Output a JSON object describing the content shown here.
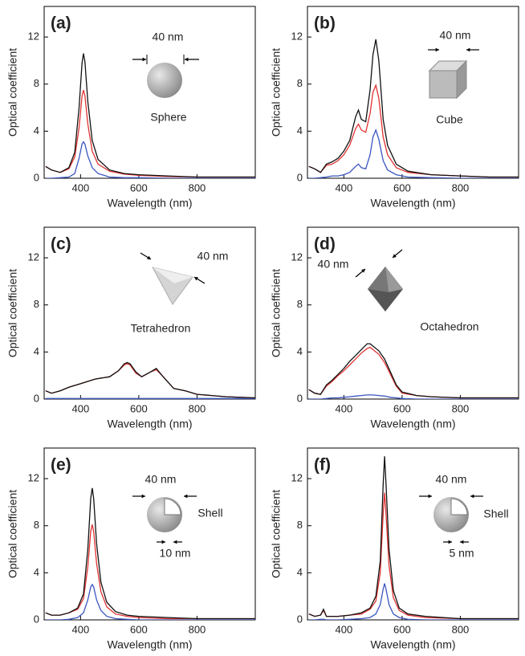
{
  "chart_data": [
    {
      "type": "line",
      "panel_label": "(a)",
      "xlabel": "Wavelength (nm)",
      "ylabel": "Optical coefficient",
      "annotations": [
        "40 nm",
        "Sphere"
      ],
      "xlim": [
        275,
        1000
      ],
      "ylim": [
        0,
        14.6
      ],
      "xticks": [
        400,
        600,
        800
      ],
      "yticks": [
        0,
        4,
        8,
        12
      ],
      "x": [
        280,
        300,
        330,
        360,
        380,
        395,
        405,
        410,
        415,
        425,
        440,
        460,
        500,
        550,
        600,
        700,
        800,
        900,
        1000
      ],
      "series": [
        {
          "color": "#111111",
          "values": [
            1.0,
            0.7,
            0.5,
            0.9,
            2.2,
            6,
            9.8,
            10.6,
            9.9,
            6.5,
            3.2,
            1.6,
            0.7,
            0.4,
            0.3,
            0.2,
            0.1,
            0.1,
            0.1
          ]
        },
        {
          "color": "#e03232",
          "values": [
            1.0,
            0.7,
            0.5,
            0.8,
            1.8,
            4.3,
            7,
            7.5,
            7,
            4.6,
            2.3,
            1.2,
            0.6,
            0.35,
            0.25,
            0.15,
            0.1,
            0.1,
            0.1
          ]
        },
        {
          "color": "#3a55c0",
          "values": [
            0,
            0,
            0.05,
            0.1,
            0.4,
            1.7,
            2.9,
            3.1,
            2.9,
            1.9,
            0.9,
            0.4,
            0.1,
            0.05,
            0.05,
            0,
            0,
            0,
            0
          ]
        }
      ]
    },
    {
      "type": "line",
      "panel_label": "(b)",
      "xlabel": "Wavelength (nm)",
      "ylabel": "Optical coefficient",
      "annotations": [
        "40 nm",
        "Cube"
      ],
      "xlim": [
        275,
        1000
      ],
      "ylim": [
        0,
        14.6
      ],
      "xticks": [
        400,
        600,
        800
      ],
      "yticks": [
        0,
        4,
        8,
        12
      ],
      "x": [
        280,
        300,
        320,
        340,
        360,
        380,
        400,
        420,
        440,
        450,
        460,
        475,
        490,
        500,
        510,
        520,
        535,
        550,
        580,
        620,
        700,
        800,
        900,
        1000
      ],
      "series": [
        {
          "color": "#111111",
          "values": [
            1.0,
            0.8,
            0.5,
            1.2,
            1.4,
            1.7,
            2.3,
            3.2,
            5.2,
            5.8,
            5.0,
            4.8,
            7.5,
            10.5,
            11.8,
            10,
            5,
            2.8,
            1.2,
            0.6,
            0.3,
            0.2,
            0.1,
            0.1
          ]
        },
        {
          "color": "#e03232",
          "values": [
            1.0,
            0.8,
            0.5,
            1.1,
            1.2,
            1.5,
            2,
            2.8,
            4.2,
            4.6,
            4.1,
            3.9,
            5.5,
            7.3,
            7.9,
            6.8,
            3.5,
            2,
            0.9,
            0.5,
            0.3,
            0.2,
            0.1,
            0.1
          ]
        },
        {
          "color": "#3a55c0",
          "values": [
            0,
            0,
            0.05,
            0.1,
            0.2,
            0.2,
            0.3,
            0.5,
            1,
            1.2,
            0.9,
            0.8,
            2,
            3.5,
            4.1,
            3.3,
            1.5,
            0.7,
            0.3,
            0.1,
            0.05,
            0,
            0,
            0
          ]
        }
      ]
    },
    {
      "type": "line",
      "panel_label": "(c)",
      "xlabel": "Wavelength (nm)",
      "ylabel": "Optical coefficient",
      "annotations": [
        "40 nm",
        "Tetrahedron"
      ],
      "xlim": [
        275,
        1000
      ],
      "ylim": [
        0,
        14.6
      ],
      "xticks": [
        400,
        600,
        800
      ],
      "yticks": [
        0,
        4,
        8,
        12
      ],
      "x": [
        280,
        300,
        330,
        360,
        400,
        450,
        500,
        530,
        550,
        560,
        570,
        590,
        610,
        640,
        660,
        680,
        720,
        760,
        800,
        850,
        900,
        1000
      ],
      "series": [
        {
          "color": "#111111",
          "values": [
            0.7,
            0.5,
            0.7,
            1.0,
            1.3,
            1.7,
            1.9,
            2.4,
            3.0,
            3.1,
            3.0,
            2.3,
            1.9,
            2.3,
            2.6,
            2.0,
            0.9,
            0.7,
            0.4,
            0.3,
            0.2,
            0.1
          ]
        },
        {
          "color": "#e03232",
          "values": [
            0.7,
            0.5,
            0.7,
            1.0,
            1.3,
            1.7,
            1.9,
            2.4,
            2.9,
            3.0,
            2.9,
            2.2,
            1.9,
            2.3,
            2.5,
            2.0,
            0.9,
            0.7,
            0.4,
            0.3,
            0.2,
            0.1
          ]
        },
        {
          "color": "#3a55c0",
          "values": [
            0.05,
            0.05,
            0.05,
            0.05,
            0.05,
            0.05,
            0.05,
            0.05,
            0.05,
            0.05,
            0.05,
            0.05,
            0.05,
            0.05,
            0.05,
            0.05,
            0.05,
            0.05,
            0.05,
            0.05,
            0.05,
            0.05
          ]
        }
      ]
    },
    {
      "type": "line",
      "panel_label": "(d)",
      "xlabel": "Wavelength (nm)",
      "ylabel": "Optical coefficient",
      "annotations": [
        "40 nm",
        "Octahedron"
      ],
      "xlim": [
        275,
        1000
      ],
      "ylim": [
        0,
        14.6
      ],
      "xticks": [
        400,
        600,
        800
      ],
      "yticks": [
        0,
        4,
        8,
        12
      ],
      "x": [
        280,
        300,
        320,
        340,
        360,
        380,
        400,
        420,
        440,
        460,
        480,
        490,
        500,
        520,
        540,
        560,
        580,
        600,
        650,
        700,
        800,
        900,
        1000
      ],
      "series": [
        {
          "color": "#111111",
          "values": [
            0.8,
            0.5,
            0.4,
            1.2,
            1.6,
            2.1,
            2.6,
            3.2,
            3.7,
            4.2,
            4.7,
            4.7,
            4.5,
            4.1,
            3.4,
            2.3,
            1.2,
            0.6,
            0.3,
            0.2,
            0.1,
            0.1,
            0.1
          ]
        },
        {
          "color": "#e03232",
          "values": [
            0.8,
            0.5,
            0.4,
            1.1,
            1.5,
            2.0,
            2.4,
            2.9,
            3.4,
            3.9,
            4.3,
            4.4,
            4.2,
            3.8,
            3.1,
            2.1,
            1.1,
            0.5,
            0.3,
            0.2,
            0.1,
            0.1,
            0.1
          ]
        },
        {
          "color": "#3a55c0",
          "values": [
            0,
            0,
            0,
            0.05,
            0.1,
            0.1,
            0.15,
            0.2,
            0.25,
            0.3,
            0.35,
            0.35,
            0.35,
            0.3,
            0.25,
            0.15,
            0.1,
            0.05,
            0,
            0,
            0,
            0,
            0
          ]
        }
      ]
    },
    {
      "type": "line",
      "panel_label": "(e)",
      "xlabel": "Wavelength (nm)",
      "ylabel": "Optical coefficient",
      "annotations": [
        "40 nm",
        "Shell",
        "10 nm"
      ],
      "xlim": [
        275,
        1000
      ],
      "ylim": [
        0,
        14.6
      ],
      "xticks": [
        400,
        600,
        800
      ],
      "yticks": [
        0,
        4,
        8,
        12
      ],
      "x": [
        280,
        300,
        330,
        360,
        390,
        410,
        425,
        435,
        440,
        445,
        455,
        470,
        490,
        520,
        560,
        600,
        700,
        800,
        900,
        1000
      ],
      "series": [
        {
          "color": "#111111",
          "values": [
            0.6,
            0.4,
            0.4,
            0.6,
            1.0,
            2.2,
            6,
            10.3,
            11.2,
            10.3,
            6.5,
            3.2,
            1.5,
            0.7,
            0.4,
            0.3,
            0.2,
            0.1,
            0.1,
            0.1
          ]
        },
        {
          "color": "#e03232",
          "values": [
            0.6,
            0.4,
            0.4,
            0.6,
            0.9,
            1.8,
            4.5,
            7.5,
            8.1,
            7.5,
            4.8,
            2.4,
            1.1,
            0.5,
            0.3,
            0.2,
            0.1,
            0.1,
            0.1,
            0.1
          ]
        },
        {
          "color": "#3a55c0",
          "values": [
            0,
            0,
            0,
            0.05,
            0.2,
            0.6,
            1.7,
            2.8,
            3.0,
            2.8,
            1.7,
            0.8,
            0.3,
            0.1,
            0.05,
            0,
            0,
            0,
            0,
            0
          ]
        }
      ]
    },
    {
      "type": "line",
      "panel_label": "(f)",
      "xlabel": "Wavelength (nm)",
      "ylabel": "Optical coefficient",
      "annotations": [
        "40 nm",
        "Shell",
        "5 nm"
      ],
      "xlim": [
        275,
        1000
      ],
      "ylim": [
        0,
        14.6
      ],
      "xticks": [
        400,
        600,
        800
      ],
      "yticks": [
        0,
        4,
        8,
        12
      ],
      "x": [
        280,
        300,
        320,
        330,
        340,
        380,
        420,
        460,
        490,
        510,
        525,
        535,
        540,
        545,
        555,
        570,
        590,
        620,
        680,
        800,
        900,
        1000
      ],
      "series": [
        {
          "color": "#111111",
          "values": [
            0.5,
            0.3,
            0.4,
            0.9,
            0.3,
            0.3,
            0.4,
            0.6,
            1.0,
            2.0,
            5,
            11.5,
            13.9,
            11.5,
            6,
            2.5,
            1.0,
            0.5,
            0.3,
            0.1,
            0.1,
            0.1
          ]
        },
        {
          "color": "#e03232",
          "values": [
            0.5,
            0.3,
            0.4,
            0.8,
            0.3,
            0.3,
            0.4,
            0.5,
            0.9,
            1.6,
            4,
            9,
            10.8,
            9,
            4.6,
            1.9,
            0.8,
            0.4,
            0.2,
            0.1,
            0.1,
            0.1
          ]
        },
        {
          "color": "#3a55c0",
          "values": [
            0,
            0,
            0.05,
            0.05,
            0,
            0,
            0.05,
            0.1,
            0.2,
            0.5,
            1.3,
            2.6,
            3.1,
            2.6,
            1.3,
            0.5,
            0.2,
            0.05,
            0,
            0,
            0,
            0
          ]
        }
      ]
    }
  ]
}
